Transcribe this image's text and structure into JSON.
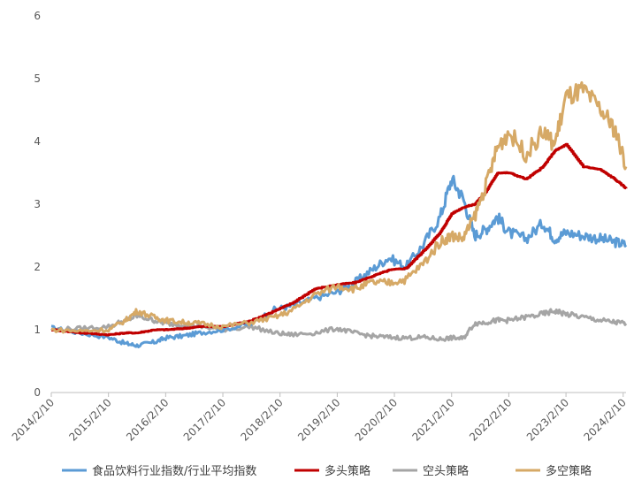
{
  "chart_data": {
    "type": "line",
    "title": "",
    "xlabel": "",
    "ylabel": "",
    "ylim": [
      0,
      6
    ],
    "yticks": [
      0,
      1,
      2,
      3,
      4,
      5,
      6
    ],
    "x_ticks": [
      "2014/2/10",
      "2015/2/10",
      "2016/2/10",
      "2017/2/10",
      "2018/2/10",
      "2019/2/10",
      "2020/2/10",
      "2021/2/10",
      "2022/2/10",
      "2023/2/10",
      "2024/2/10"
    ],
    "x_range": [
      2014.0,
      2024.05
    ],
    "grid": false,
    "legend_position": "bottom",
    "x": [
      2014.0,
      2014.5,
      2015.0,
      2015.3,
      2015.5,
      2015.8,
      2016.0,
      2016.3,
      2016.6,
      2017.0,
      2017.5,
      2017.9,
      2018.2,
      2018.6,
      2019.0,
      2019.3,
      2019.6,
      2019.9,
      2020.2,
      2020.5,
      2020.8,
      2021.0,
      2021.2,
      2021.4,
      2021.6,
      2021.8,
      2022.0,
      2022.3,
      2022.6,
      2022.8,
      2023.0,
      2023.3,
      2023.6,
      2023.85,
      2024.05
    ],
    "series": [
      {
        "name": "食品饮料行业指数/行业平均指数",
        "color": "#5b9bd5",
        "values": [
          1.03,
          0.95,
          0.88,
          0.78,
          0.75,
          0.8,
          0.87,
          0.9,
          0.95,
          1.0,
          1.1,
          1.32,
          1.38,
          1.5,
          1.6,
          1.75,
          1.95,
          2.15,
          2.0,
          2.35,
          2.8,
          3.4,
          3.1,
          2.5,
          2.6,
          2.8,
          2.55,
          2.45,
          2.7,
          2.45,
          2.55,
          2.5,
          2.45,
          2.4,
          2.35
        ]
      },
      {
        "name": "多头策略",
        "color": "#c00000",
        "values": [
          1.0,
          0.95,
          0.92,
          0.95,
          0.95,
          1.0,
          1.0,
          1.02,
          1.05,
          1.05,
          1.15,
          1.3,
          1.42,
          1.65,
          1.72,
          1.75,
          1.85,
          1.95,
          1.98,
          2.25,
          2.55,
          2.85,
          2.95,
          3.0,
          3.2,
          3.5,
          3.5,
          3.4,
          3.6,
          3.85,
          3.95,
          3.6,
          3.55,
          3.4,
          3.25
        ]
      },
      {
        "name": "空头策略",
        "color": "#a5a5a5",
        "values": [
          1.0,
          1.02,
          1.05,
          1.15,
          1.22,
          1.15,
          1.1,
          1.08,
          1.05,
          1.0,
          1.05,
          0.95,
          0.92,
          0.95,
          1.02,
          0.95,
          0.9,
          0.88,
          0.87,
          0.88,
          0.85,
          0.87,
          0.86,
          1.1,
          1.12,
          1.15,
          1.15,
          1.2,
          1.25,
          1.3,
          1.25,
          1.2,
          1.15,
          1.12,
          1.1
        ]
      },
      {
        "name": "多空策略",
        "color": "#d6a966",
        "values": [
          1.0,
          0.98,
          1.0,
          1.15,
          1.3,
          1.2,
          1.15,
          1.12,
          1.1,
          1.05,
          1.12,
          1.2,
          1.3,
          1.55,
          1.7,
          1.65,
          1.75,
          1.75,
          1.8,
          2.05,
          2.4,
          2.5,
          2.45,
          2.8,
          3.3,
          3.9,
          4.15,
          3.8,
          4.15,
          3.95,
          4.7,
          4.8,
          4.5,
          4.2,
          3.6
        ]
      }
    ]
  }
}
